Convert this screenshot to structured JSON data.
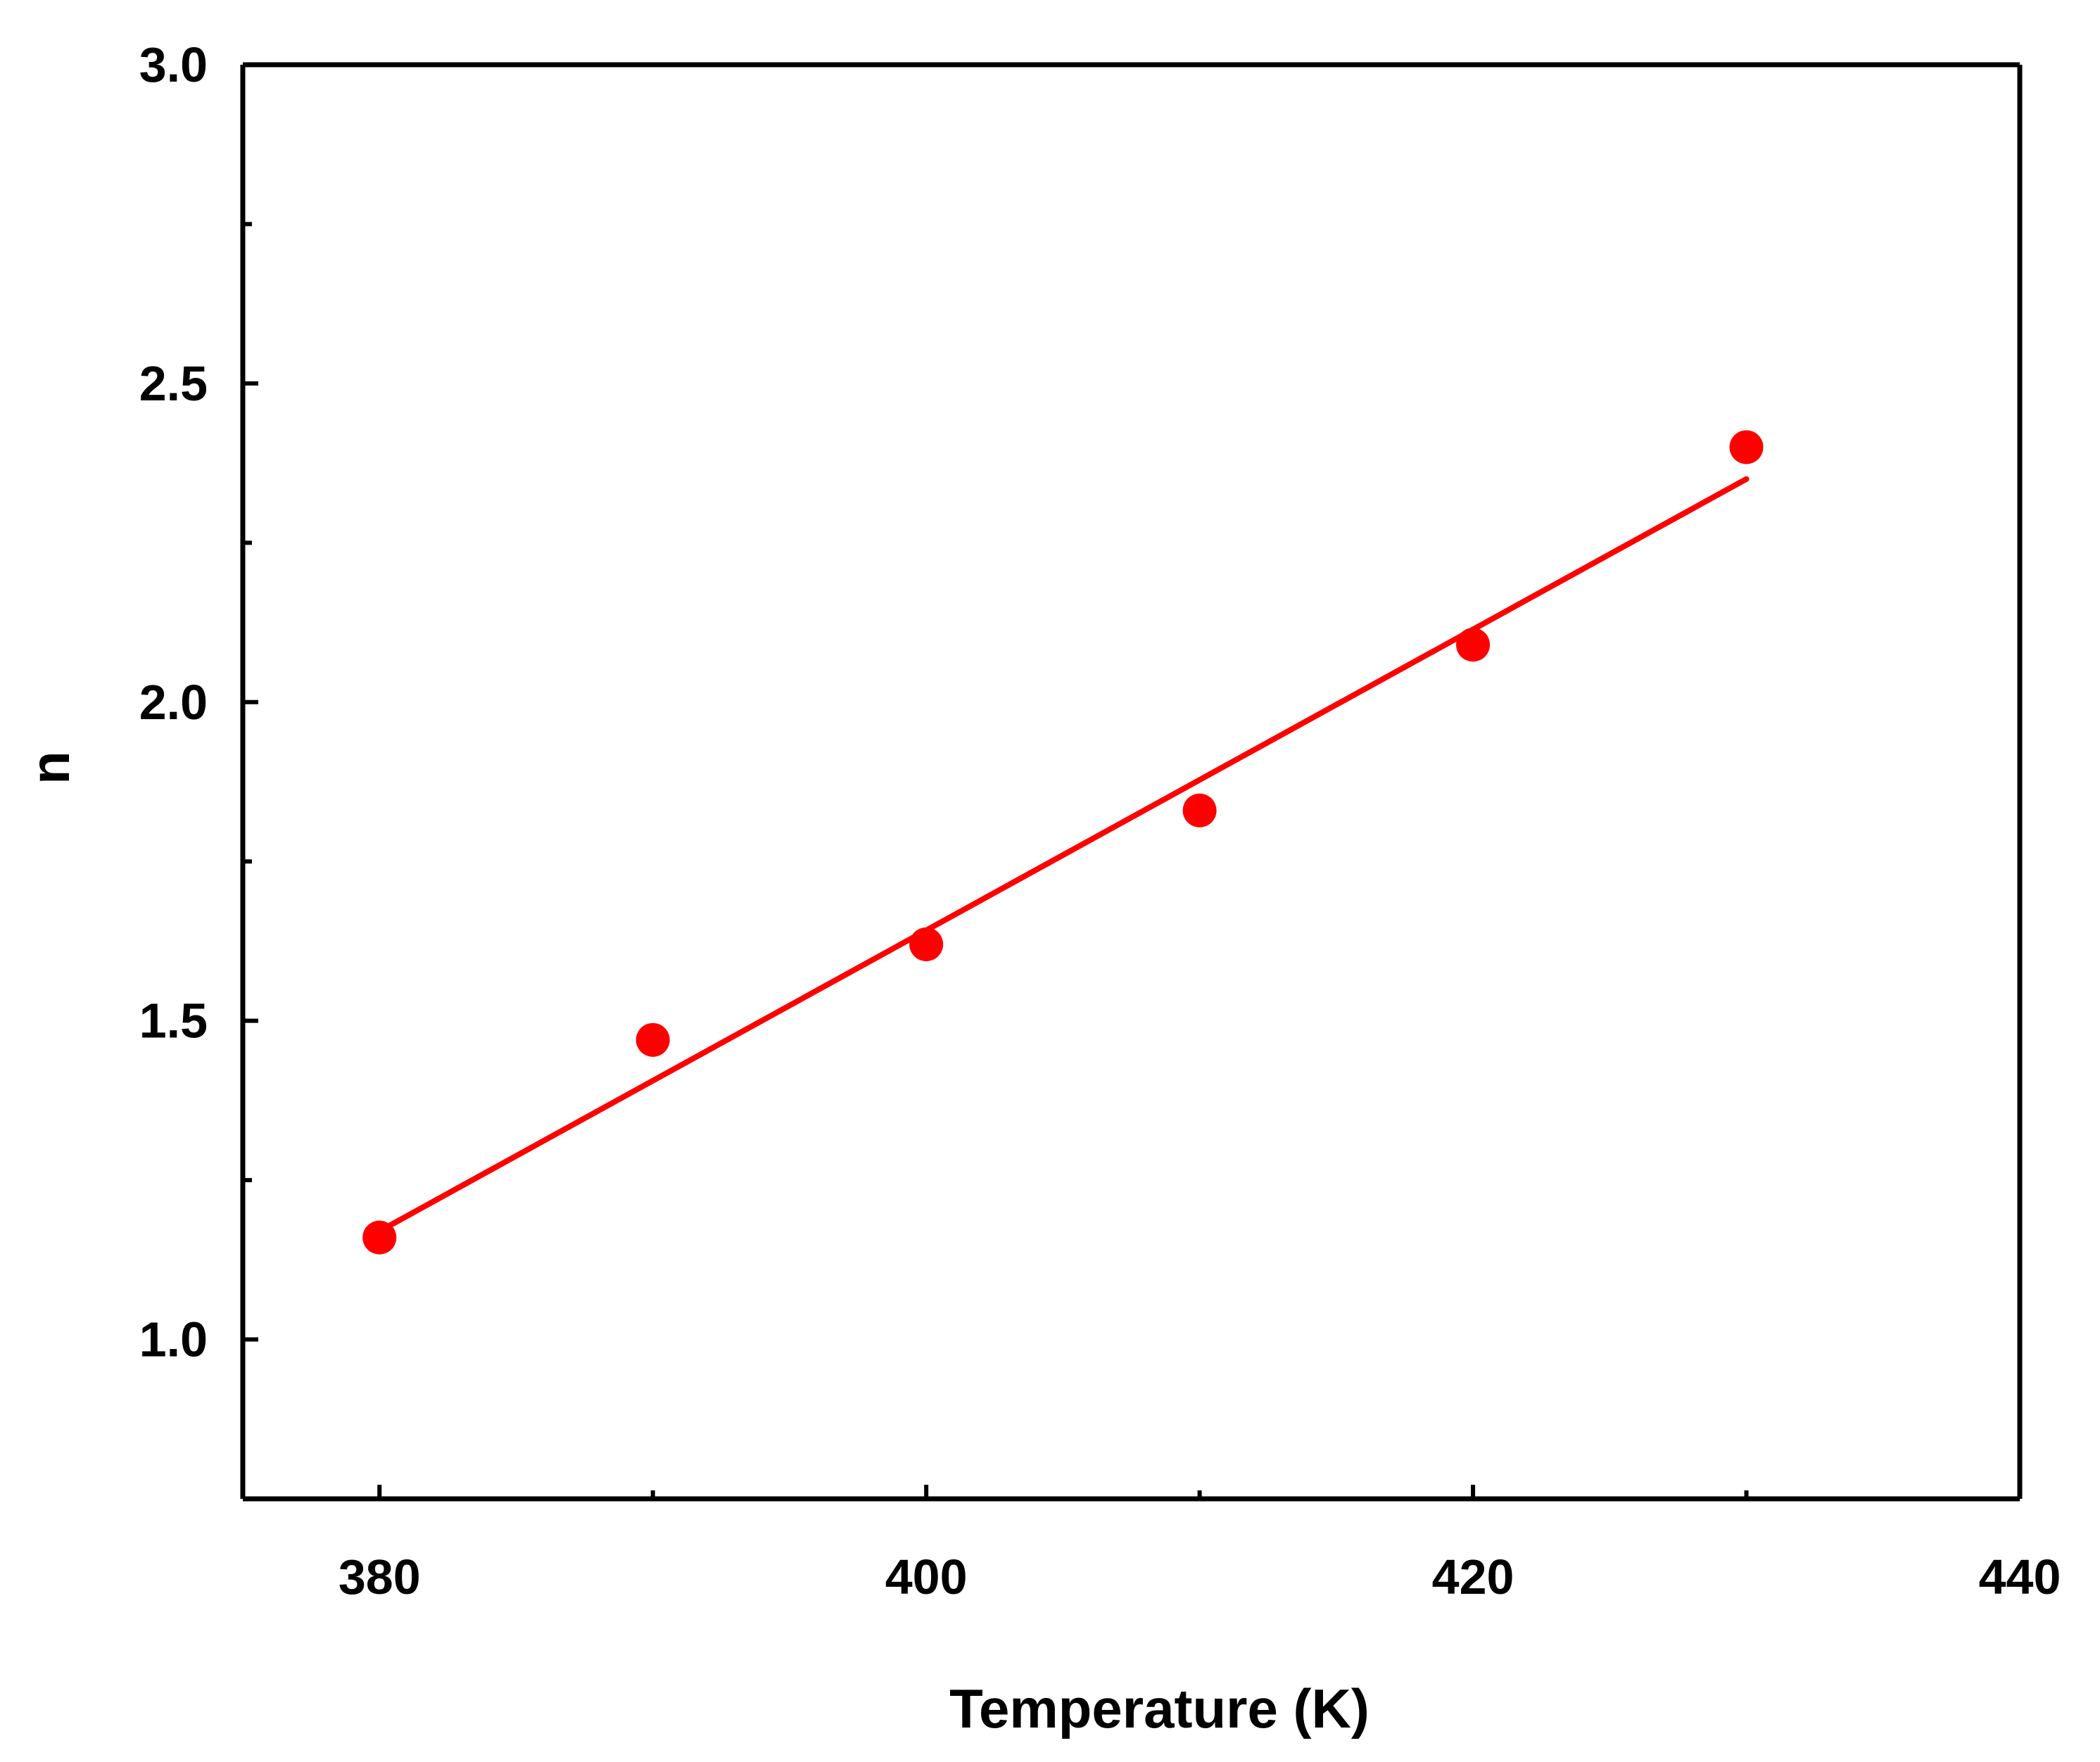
{
  "chart_data": {
    "type": "scatter",
    "title": "",
    "xlabel": "Temperature (K)",
    "ylabel": "n",
    "xlim": [
      375,
      440
    ],
    "ylim": [
      0.75,
      3.0
    ],
    "xticks": [
      380,
      400,
      420,
      440
    ],
    "xtick_labels": [
      "380",
      "400",
      "420",
      "440"
    ],
    "xminor": [
      390,
      410,
      430
    ],
    "yticks": [
      1.0,
      1.5,
      2.0,
      2.5,
      3.0
    ],
    "ytick_labels": [
      "1.0",
      "1.5",
      "2.0",
      "2.5",
      "3.0"
    ],
    "yminor": [
      1.25,
      1.75,
      2.25,
      2.75
    ],
    "grid": false,
    "legend": "none",
    "color": "#ff0000",
    "series": [
      {
        "type": "scatter",
        "x": [
          380,
          390,
          400,
          410,
          420,
          430
        ],
        "y": [
          1.16,
          1.47,
          1.62,
          1.83,
          2.09,
          2.4
        ]
      },
      {
        "type": "line",
        "fit": "linear",
        "x": [
          380,
          430
        ],
        "y": [
          1.17,
          2.35
        ]
      }
    ]
  }
}
